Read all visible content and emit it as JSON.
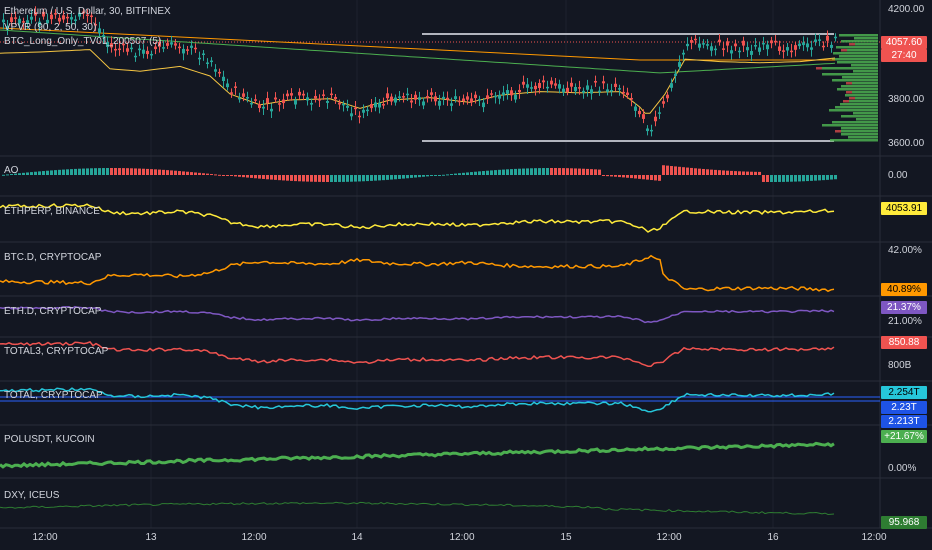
{
  "header": {
    "symbol_line": "Ethereum / U.S. Dollar, 30, BITFINEX",
    "indicator_1": "VPVR (90, 2, 50, 30)",
    "indicator_2": "BTC_Long_Only_TV01_200507 (5)"
  },
  "main_axis": {
    "ticks": [
      "4200.00",
      "3800.00",
      "3600.00"
    ],
    "price_tag": "4057.60",
    "countdown": "27:40",
    "colors": {
      "up": "#26a69a",
      "down": "#ef5350",
      "volume_profile": "#4caf50"
    }
  },
  "panes": [
    {
      "id": "ao",
      "label": "AO",
      "axis_values": [
        "0.00"
      ],
      "tags": []
    },
    {
      "id": "ethperp",
      "label": "ETHPERP, BINANCE",
      "axis_values": [],
      "tags": [
        {
          "text": "4053.91",
          "bg": "#ffeb3b",
          "fg": "#000000"
        }
      ],
      "color": "#ffeb3b"
    },
    {
      "id": "btcd",
      "label": "BTC.D, CRYPTOCAP",
      "axis_values": [
        "42.00%"
      ],
      "tags": [
        {
          "text": "40.89%",
          "bg": "#ff9800",
          "fg": "#000000"
        }
      ],
      "color": "#ff9800"
    },
    {
      "id": "ethd",
      "label": "ETH.D, CRYPTOCAP",
      "axis_values": [
        "21.00%"
      ],
      "tags": [
        {
          "text": "21.37%",
          "bg": "#7e57c2",
          "fg": "#ffffff"
        }
      ],
      "color": "#7e57c2"
    },
    {
      "id": "total3",
      "label": "TOTAL3, CRYPTOCAP",
      "axis_values": [
        "800B"
      ],
      "tags": [
        {
          "text": "850.88",
          "bg": "#ef5350",
          "fg": "#ffffff"
        }
      ],
      "color": "#ef5350"
    },
    {
      "id": "total",
      "label": "TOTAL, CRYPTOCAP",
      "axis_values": [],
      "tags": [
        {
          "text": "2.254T",
          "bg": "#26c6da",
          "fg": "#000000"
        },
        {
          "text": "2.23T",
          "bg": "#1e53e5",
          "fg": "#ffffff"
        },
        {
          "text": "2.213T",
          "bg": "#1e53e5",
          "fg": "#ffffff"
        }
      ],
      "color": "#26c6da"
    },
    {
      "id": "polusdt",
      "label": "POLUSDT, KUCOIN",
      "axis_values": [
        "0.00%"
      ],
      "tags": [
        {
          "text": "+21.67%",
          "bg": "#4caf50",
          "fg": "#ffffff"
        }
      ],
      "color": "#4caf50"
    },
    {
      "id": "dxy",
      "label": "DXY, ICEUS",
      "axis_values": [],
      "tags": [
        {
          "text": "95.968",
          "bg": "#2e7d32",
          "fg": "#ffffff"
        }
      ],
      "color": "#2e7d32"
    }
  ],
  "time_axis": [
    "12:00",
    "13",
    "12:00",
    "14",
    "12:00",
    "15",
    "12:00",
    "16",
    "12:00"
  ]
}
